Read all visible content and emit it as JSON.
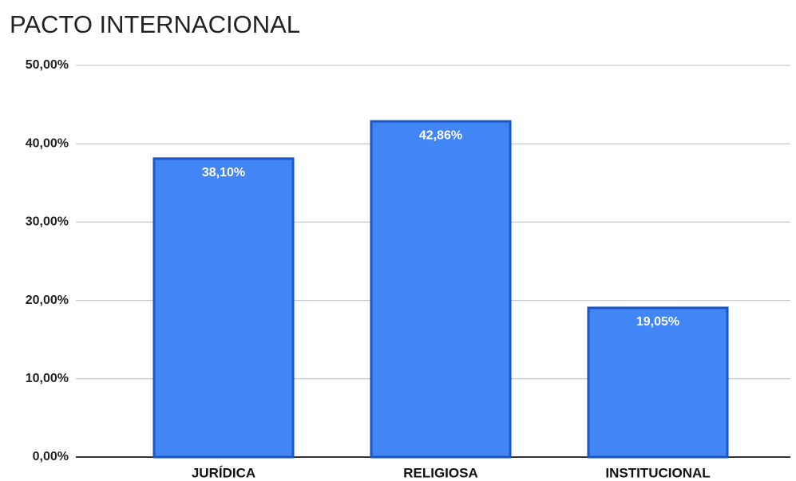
{
  "chart_data": {
    "type": "bar",
    "title": "PACTO INTERNACIONAL",
    "categories": [
      "JURÍDICA",
      "RELIGIOSA",
      "INSTITUCIONAL"
    ],
    "values": [
      38.1,
      42.86,
      19.05
    ],
    "value_labels": [
      "38,10%",
      "42,86%",
      "19,05%"
    ],
    "color": "#4285f4",
    "ylim": [
      0,
      50
    ],
    "yticks": [
      {
        "value": 0,
        "label": "0,00%"
      },
      {
        "value": 10,
        "label": "10,00%"
      },
      {
        "value": 20,
        "label": "20,00%"
      },
      {
        "value": 30,
        "label": "30,00%"
      },
      {
        "value": 40,
        "label": "40,00%"
      },
      {
        "value": 50,
        "label": "50,00%"
      }
    ],
    "grid": true
  }
}
